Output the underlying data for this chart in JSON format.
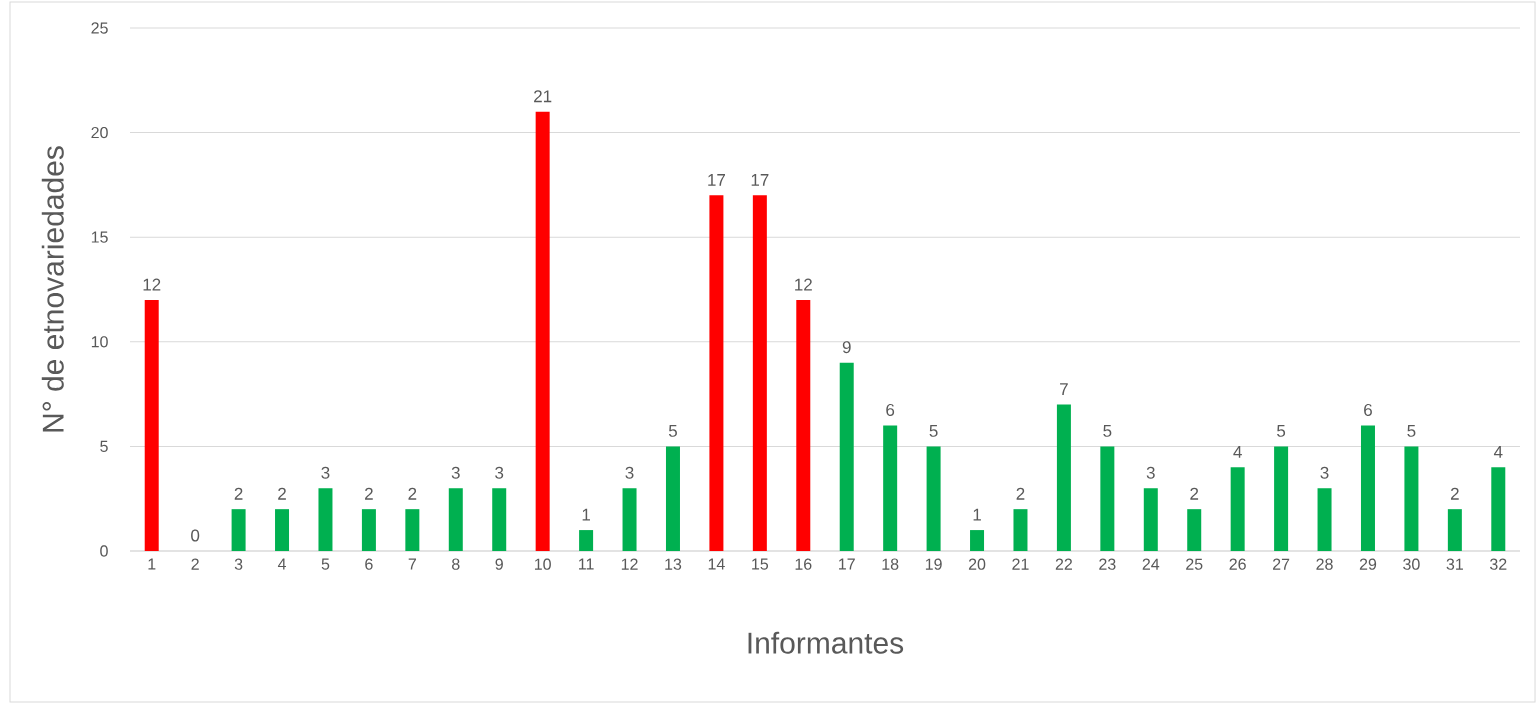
{
  "chart_data": {
    "type": "bar",
    "xlabel": "Informantes",
    "ylabel": "N° de etnovariedades",
    "categories": [
      "1",
      "2",
      "3",
      "4",
      "5",
      "6",
      "7",
      "8",
      "9",
      "10",
      "11",
      "12",
      "13",
      "14",
      "15",
      "16",
      "17",
      "18",
      "19",
      "20",
      "21",
      "22",
      "23",
      "24",
      "25",
      "26",
      "27",
      "28",
      "29",
      "30",
      "31",
      "32"
    ],
    "values": [
      12,
      0,
      2,
      2,
      3,
      2,
      2,
      3,
      3,
      21,
      1,
      3,
      5,
      17,
      17,
      12,
      9,
      6,
      5,
      1,
      2,
      7,
      5,
      3,
      2,
      4,
      5,
      3,
      6,
      5,
      2,
      4
    ],
    "colors": [
      "#ff0000",
      "#00b050",
      "#00b050",
      "#00b050",
      "#00b050",
      "#00b050",
      "#00b050",
      "#00b050",
      "#00b050",
      "#ff0000",
      "#00b050",
      "#00b050",
      "#00b050",
      "#ff0000",
      "#ff0000",
      "#ff0000",
      "#00b050",
      "#00b050",
      "#00b050",
      "#00b050",
      "#00b050",
      "#00b050",
      "#00b050",
      "#00b050",
      "#00b050",
      "#00b050",
      "#00b050",
      "#00b050",
      "#00b050",
      "#00b050",
      "#00b050",
      "#00b050"
    ],
    "ylim": [
      0,
      25
    ],
    "yticks": [
      0,
      5,
      10,
      15,
      20,
      25
    ],
    "grid": "y",
    "data_labels": true
  }
}
